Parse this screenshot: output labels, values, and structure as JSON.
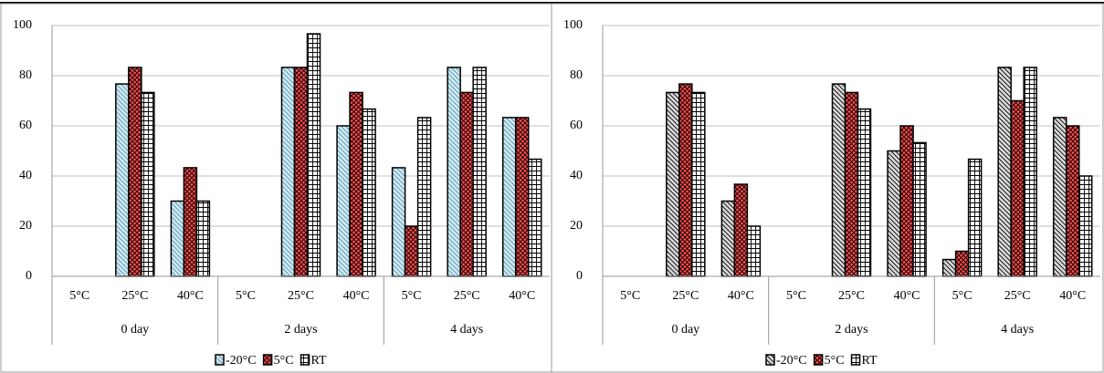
{
  "chart_data": [
    {
      "type": "bar",
      "ylim": [
        0,
        100
      ],
      "yticks": [
        0,
        20,
        40,
        60,
        80,
        100
      ],
      "grid": true,
      "categories": [
        "5°C",
        "25°C",
        "40°C",
        "5°C",
        "25°C",
        "40°C",
        "5°C",
        "25°C",
        "40°C"
      ],
      "groups": [
        "0 day",
        "2 days",
        "4 days"
      ],
      "series": [
        {
          "name": "-20°C",
          "color": "#c9ecf5",
          "pattern": "diagonal",
          "values": [
            0,
            76.7,
            30,
            0,
            83.3,
            60,
            43.3,
            83.3,
            63.3
          ]
        },
        {
          "name": "5°C",
          "color": "#ff4a4a",
          "pattern": "crosshatch",
          "values": [
            0,
            83.3,
            43.3,
            0,
            83.3,
            73.3,
            20,
            73.3,
            63.3
          ]
        },
        {
          "name": "RT",
          "color": "#ffffff",
          "pattern": "grid",
          "values": [
            0,
            73.3,
            30,
            0,
            96.7,
            66.7,
            63.3,
            83.3,
            46.7
          ]
        }
      ]
    },
    {
      "type": "bar",
      "ylim": [
        0,
        100
      ],
      "yticks": [
        0,
        20,
        40,
        60,
        80,
        100
      ],
      "grid": true,
      "categories": [
        "5°C",
        "25°C",
        "40°C",
        "5°C",
        "25°C",
        "40°C",
        "5°C",
        "25°C",
        "40°C"
      ],
      "groups": [
        "0 day",
        "2 days",
        "4 days"
      ],
      "series": [
        {
          "name": "-20°C",
          "color": "#d9d9d9",
          "pattern": "diagonal",
          "values": [
            0,
            73.3,
            30,
            0,
            76.7,
            50,
            6.7,
            83.3,
            63.3
          ]
        },
        {
          "name": "5°C",
          "color": "#ff4a4a",
          "pattern": "crosshatch",
          "values": [
            0,
            76.7,
            36.7,
            0,
            73.3,
            60,
            10,
            70,
            60
          ]
        },
        {
          "name": "RT",
          "color": "#ffffff",
          "pattern": "grid",
          "values": [
            0,
            73.3,
            20,
            0,
            66.7,
            53.3,
            46.7,
            83.3,
            40
          ]
        }
      ]
    }
  ]
}
